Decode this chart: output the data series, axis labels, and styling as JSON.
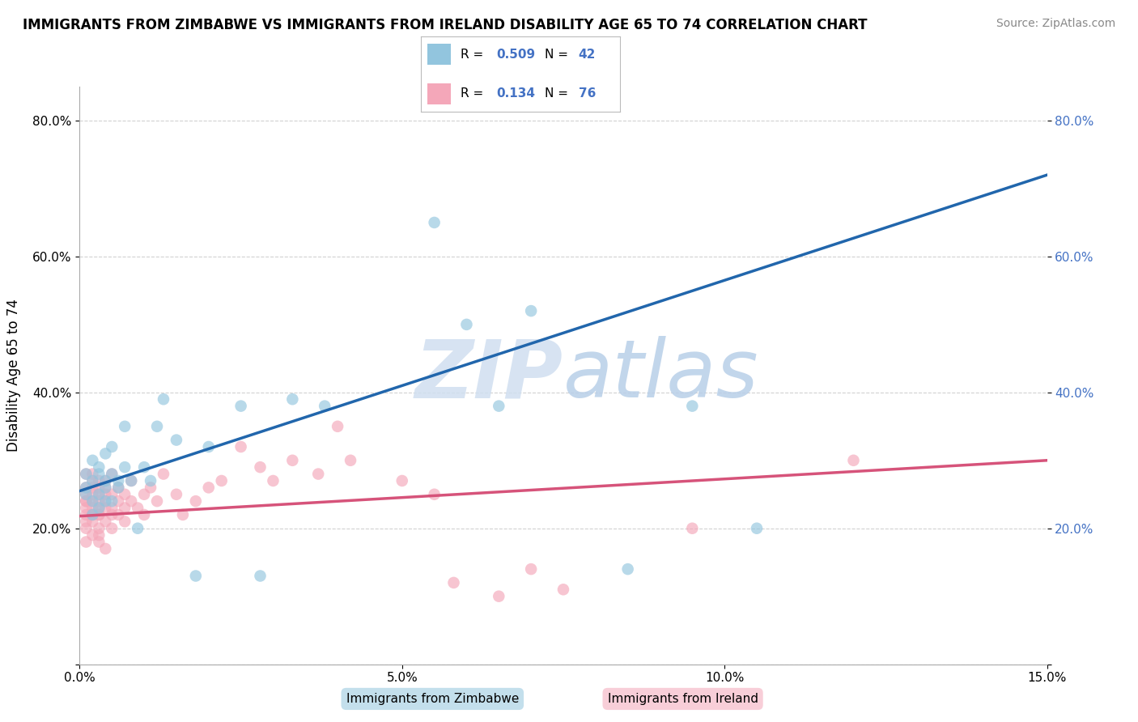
{
  "title": "IMMIGRANTS FROM ZIMBABWE VS IMMIGRANTS FROM IRELAND DISABILITY AGE 65 TO 74 CORRELATION CHART",
  "source": "Source: ZipAtlas.com",
  "ylabel": "Disability Age 65 to 74",
  "xlim": [
    0.0,
    0.15
  ],
  "ylim": [
    0.0,
    0.85
  ],
  "color_zimbabwe": "#92c5de",
  "color_ireland": "#f4a7b9",
  "color_trendline_zimbabwe": "#2166ac",
  "color_trendline_ireland": "#d6537a",
  "background_color": "#ffffff",
  "grid_color": "#cccccc",
  "watermark_color": "#d0dff0",
  "zim_trendline_x0": 0.0,
  "zim_trendline_y0": 0.255,
  "zim_trendline_x1": 0.15,
  "zim_trendline_y1": 0.72,
  "ire_trendline_x0": 0.0,
  "ire_trendline_y0": 0.218,
  "ire_trendline_x1": 0.15,
  "ire_trendline_y1": 0.3,
  "zimbabwe_x": [
    0.001,
    0.001,
    0.001,
    0.002,
    0.002,
    0.002,
    0.002,
    0.003,
    0.003,
    0.003,
    0.003,
    0.004,
    0.004,
    0.004,
    0.004,
    0.005,
    0.005,
    0.005,
    0.006,
    0.006,
    0.007,
    0.007,
    0.008,
    0.009,
    0.01,
    0.011,
    0.012,
    0.013,
    0.015,
    0.018,
    0.02,
    0.025,
    0.028,
    0.033,
    0.038,
    0.055,
    0.06,
    0.065,
    0.07,
    0.085,
    0.095,
    0.105
  ],
  "zimbabwe_y": [
    0.26,
    0.28,
    0.25,
    0.27,
    0.3,
    0.24,
    0.22,
    0.25,
    0.29,
    0.23,
    0.28,
    0.26,
    0.24,
    0.27,
    0.31,
    0.28,
    0.24,
    0.32,
    0.26,
    0.27,
    0.35,
    0.29,
    0.27,
    0.2,
    0.29,
    0.27,
    0.35,
    0.39,
    0.33,
    0.13,
    0.32,
    0.38,
    0.13,
    0.39,
    0.38,
    0.65,
    0.5,
    0.38,
    0.52,
    0.14,
    0.38,
    0.2
  ],
  "ireland_x": [
    0.001,
    0.001,
    0.001,
    0.001,
    0.001,
    0.001,
    0.001,
    0.001,
    0.001,
    0.001,
    0.002,
    0.002,
    0.002,
    0.002,
    0.002,
    0.002,
    0.002,
    0.002,
    0.002,
    0.002,
    0.003,
    0.003,
    0.003,
    0.003,
    0.003,
    0.003,
    0.003,
    0.003,
    0.003,
    0.003,
    0.004,
    0.004,
    0.004,
    0.004,
    0.004,
    0.004,
    0.004,
    0.005,
    0.005,
    0.005,
    0.005,
    0.005,
    0.006,
    0.006,
    0.006,
    0.007,
    0.007,
    0.007,
    0.008,
    0.008,
    0.009,
    0.01,
    0.01,
    0.011,
    0.012,
    0.013,
    0.015,
    0.016,
    0.018,
    0.02,
    0.022,
    0.025,
    0.028,
    0.03,
    0.033,
    0.037,
    0.04,
    0.042,
    0.05,
    0.055,
    0.058,
    0.065,
    0.07,
    0.075,
    0.095,
    0.12
  ],
  "ireland_y": [
    0.24,
    0.22,
    0.25,
    0.2,
    0.23,
    0.26,
    0.18,
    0.21,
    0.28,
    0.24,
    0.22,
    0.25,
    0.23,
    0.27,
    0.19,
    0.21,
    0.24,
    0.26,
    0.28,
    0.22,
    0.24,
    0.26,
    0.22,
    0.25,
    0.18,
    0.2,
    0.23,
    0.27,
    0.19,
    0.22,
    0.25,
    0.27,
    0.23,
    0.21,
    0.26,
    0.17,
    0.24,
    0.25,
    0.23,
    0.28,
    0.2,
    0.22,
    0.24,
    0.26,
    0.22,
    0.25,
    0.23,
    0.21,
    0.24,
    0.27,
    0.23,
    0.25,
    0.22,
    0.26,
    0.24,
    0.28,
    0.25,
    0.22,
    0.24,
    0.26,
    0.27,
    0.32,
    0.29,
    0.27,
    0.3,
    0.28,
    0.35,
    0.3,
    0.27,
    0.25,
    0.12,
    0.1,
    0.14,
    0.11,
    0.2,
    0.3
  ]
}
